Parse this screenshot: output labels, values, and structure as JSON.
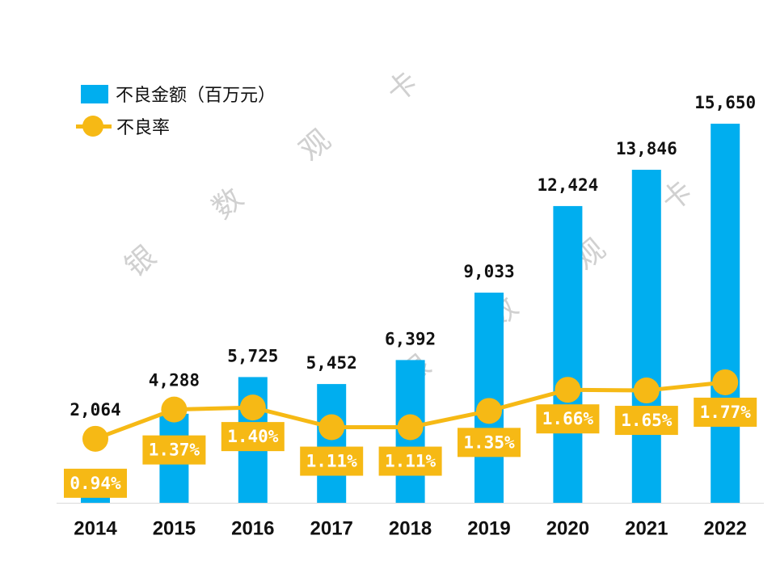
{
  "chart_data": {
    "type": "bar",
    "categories": [
      "2014",
      "2015",
      "2016",
      "2017",
      "2018",
      "2019",
      "2020",
      "2021",
      "2022"
    ],
    "series": [
      {
        "name": "不良金额（百万元）",
        "type": "bar",
        "values": [
          2064,
          4288,
          5725,
          5452,
          6392,
          9033,
          12424,
          13846,
          15650
        ],
        "labels": [
          "2,064",
          "4,288",
          "5,725",
          "5,452",
          "6,392",
          "9,033",
          "12,424",
          "13,846",
          "15,650"
        ],
        "color": "#00AEEF"
      },
      {
        "name": "不良率",
        "type": "line",
        "values": [
          0.94,
          1.37,
          1.4,
          1.11,
          1.11,
          1.35,
          1.66,
          1.65,
          1.77
        ],
        "labels": [
          "0.94%",
          "1.37%",
          "1.40%",
          "1.11%",
          "1.11%",
          "1.35%",
          "1.66%",
          "1.65%",
          "1.77%"
        ],
        "color": "#F6B915"
      }
    ],
    "ylim": [
      800,
      16000
    ],
    "y2lim": [
      0,
      5.7
    ],
    "grid": false,
    "legend": "top-left"
  },
  "watermark": "银 数 观 卡"
}
